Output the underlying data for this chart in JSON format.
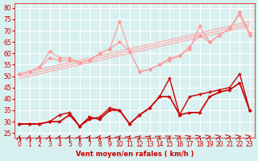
{
  "background_color": "#d8f0f0",
  "grid_color": "#ffffff",
  "xlabel": "Vent moyen/en rafales ( km/h )",
  "ylabel_ticks": [
    25,
    30,
    35,
    40,
    45,
    50,
    55,
    60,
    65,
    70,
    75,
    80
  ],
  "x_ticks": [
    0,
    1,
    2,
    3,
    4,
    5,
    6,
    7,
    8,
    9,
    10,
    11,
    12,
    13,
    14,
    15,
    16,
    17,
    18,
    19,
    20,
    21,
    22,
    23
  ],
  "xlim": [
    -0.5,
    23.5
  ],
  "ylim": [
    23,
    82
  ],
  "line_dark_red_mean": [
    29,
    29,
    29,
    30,
    30,
    33,
    28,
    32,
    31,
    35,
    35,
    29,
    33,
    36,
    41,
    41,
    33,
    34,
    34,
    41,
    43,
    44,
    47,
    35
  ],
  "line_dark_red_gust": [
    29,
    29,
    29,
    30,
    33,
    34,
    28,
    31,
    32,
    36,
    35,
    29,
    33,
    36,
    41,
    49,
    33,
    41,
    42,
    43,
    44,
    45,
    51,
    35
  ],
  "line_pink_1": [
    51,
    52,
    54,
    61,
    58,
    58,
    56,
    57,
    60,
    62,
    74,
    61,
    52,
    53,
    55,
    58,
    59,
    62,
    72,
    65,
    68,
    71,
    78,
    69
  ],
  "line_pink_2": [
    51,
    52,
    54,
    58,
    57,
    57,
    56,
    57,
    60,
    62,
    65,
    61,
    52,
    53,
    55,
    57,
    59,
    63,
    68,
    65,
    68,
    71,
    77,
    68
  ],
  "line_trend_1": [
    51,
    52,
    53,
    54,
    55,
    56,
    57,
    58,
    59,
    60,
    61,
    62,
    63,
    64,
    65,
    66,
    67,
    68,
    69,
    70,
    71,
    72,
    73,
    74
  ],
  "line_trend_2": [
    50,
    51,
    52,
    53,
    54,
    55,
    56,
    57,
    58,
    59,
    60,
    61,
    62,
    63,
    64,
    65,
    66,
    67,
    68,
    69,
    70,
    71,
    72,
    73
  ],
  "line_trend_3": [
    49,
    50,
    51,
    52,
    53,
    54,
    55,
    56,
    57,
    58,
    59,
    60,
    61,
    62,
    63,
    64,
    65,
    66,
    67,
    68,
    69,
    70,
    71,
    72
  ],
  "color_dark_red": "#cc0000",
  "color_pink": "#ff9999",
  "color_trend": "#ffaaaa",
  "arrow_color": "#cc0000",
  "xlabel_color": "#cc0000",
  "tick_color": "#cc0000",
  "title_fontsize": 7,
  "axis_fontsize": 6,
  "tick_fontsize": 5.5
}
